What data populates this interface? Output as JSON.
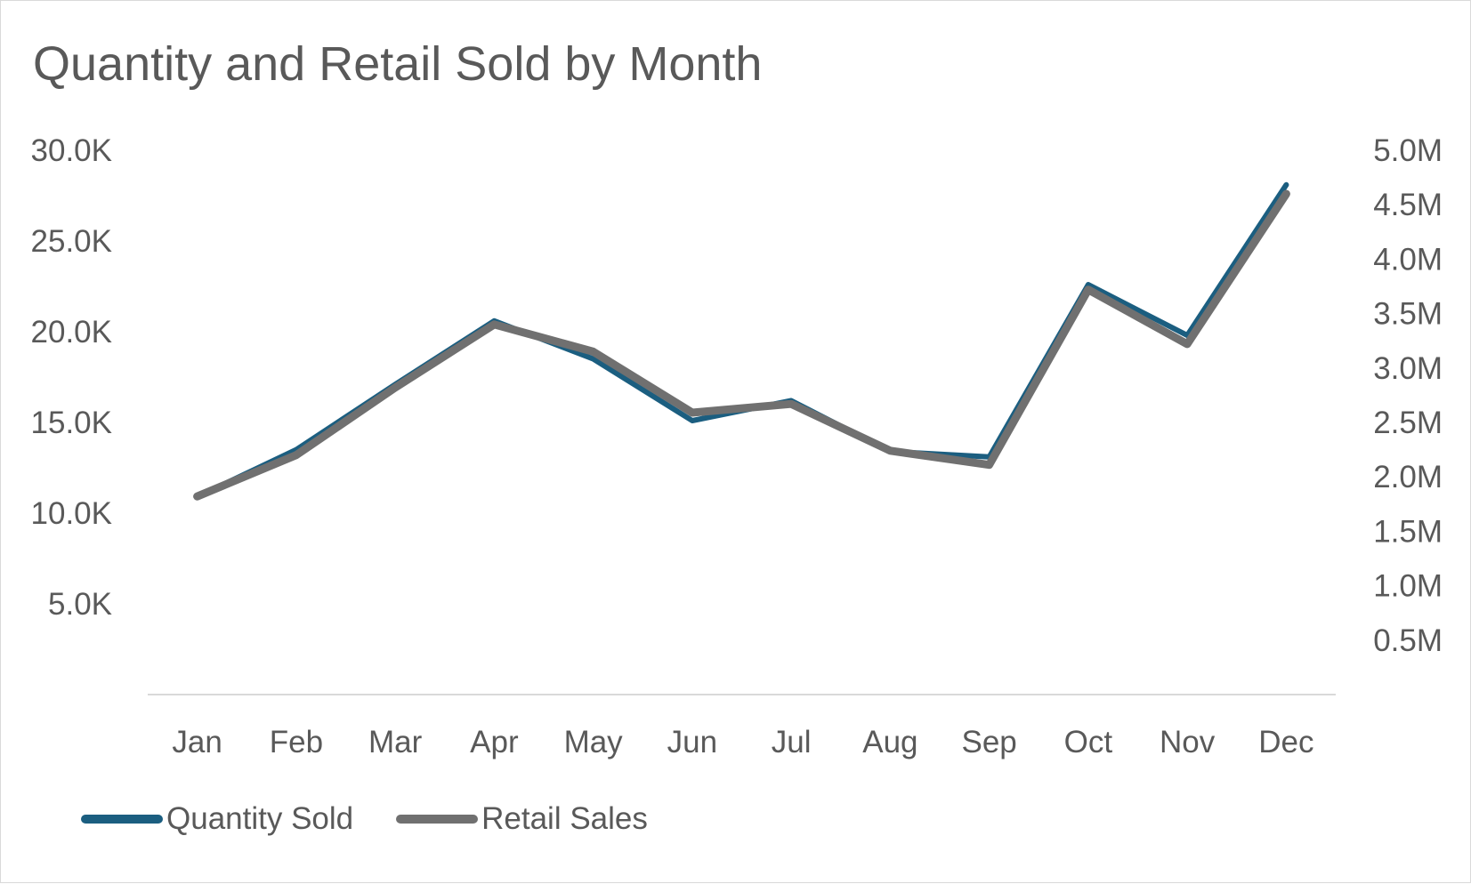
{
  "colors": {
    "quantity": "#1b5e80",
    "retail": "#707070",
    "axis_line": "#d9d9d9",
    "text": "#595959"
  },
  "chart_data": {
    "type": "line",
    "title": "Quantity and Retail Sold by Month",
    "xlabel": "",
    "ylabel": "",
    "y2label": "",
    "categories": [
      "Jan",
      "Feb",
      "Mar",
      "Apr",
      "May",
      "Jun",
      "Jul",
      "Aug",
      "Sep",
      "Oct",
      "Nov",
      "Dec"
    ],
    "y_ticks": [
      "5.0K",
      "10.0K",
      "15.0K",
      "20.0K",
      "25.0K",
      "30.0K"
    ],
    "y_tick_values": [
      5000,
      10000,
      15000,
      20000,
      25000,
      30000
    ],
    "y2_ticks": [
      "0.5M",
      "1.0M",
      "1.5M",
      "2.0M",
      "2.5M",
      "3.0M",
      "3.5M",
      "4.0M",
      "4.5M",
      "5.0M"
    ],
    "y2_tick_values": [
      500000,
      1000000,
      1500000,
      2000000,
      2500000,
      3000000,
      3500000,
      4000000,
      4500000,
      5000000
    ],
    "ylim": [
      0,
      30000
    ],
    "y2lim": [
      0,
      5000000
    ],
    "grid": false,
    "legend_position": "bottom-left",
    "series": [
      {
        "name": "Quantity Sold",
        "axis": "left",
        "values": [
          10900,
          13500,
          17100,
          20600,
          18500,
          15100,
          16200,
          13400,
          13100,
          22600,
          19800,
          28100
        ]
      },
      {
        "name": "Retail Sales",
        "axis": "right",
        "values": [
          1820000,
          2200000,
          2820000,
          3400000,
          3150000,
          2590000,
          2670000,
          2240000,
          2110000,
          3720000,
          3220000,
          4600000
        ]
      }
    ]
  }
}
